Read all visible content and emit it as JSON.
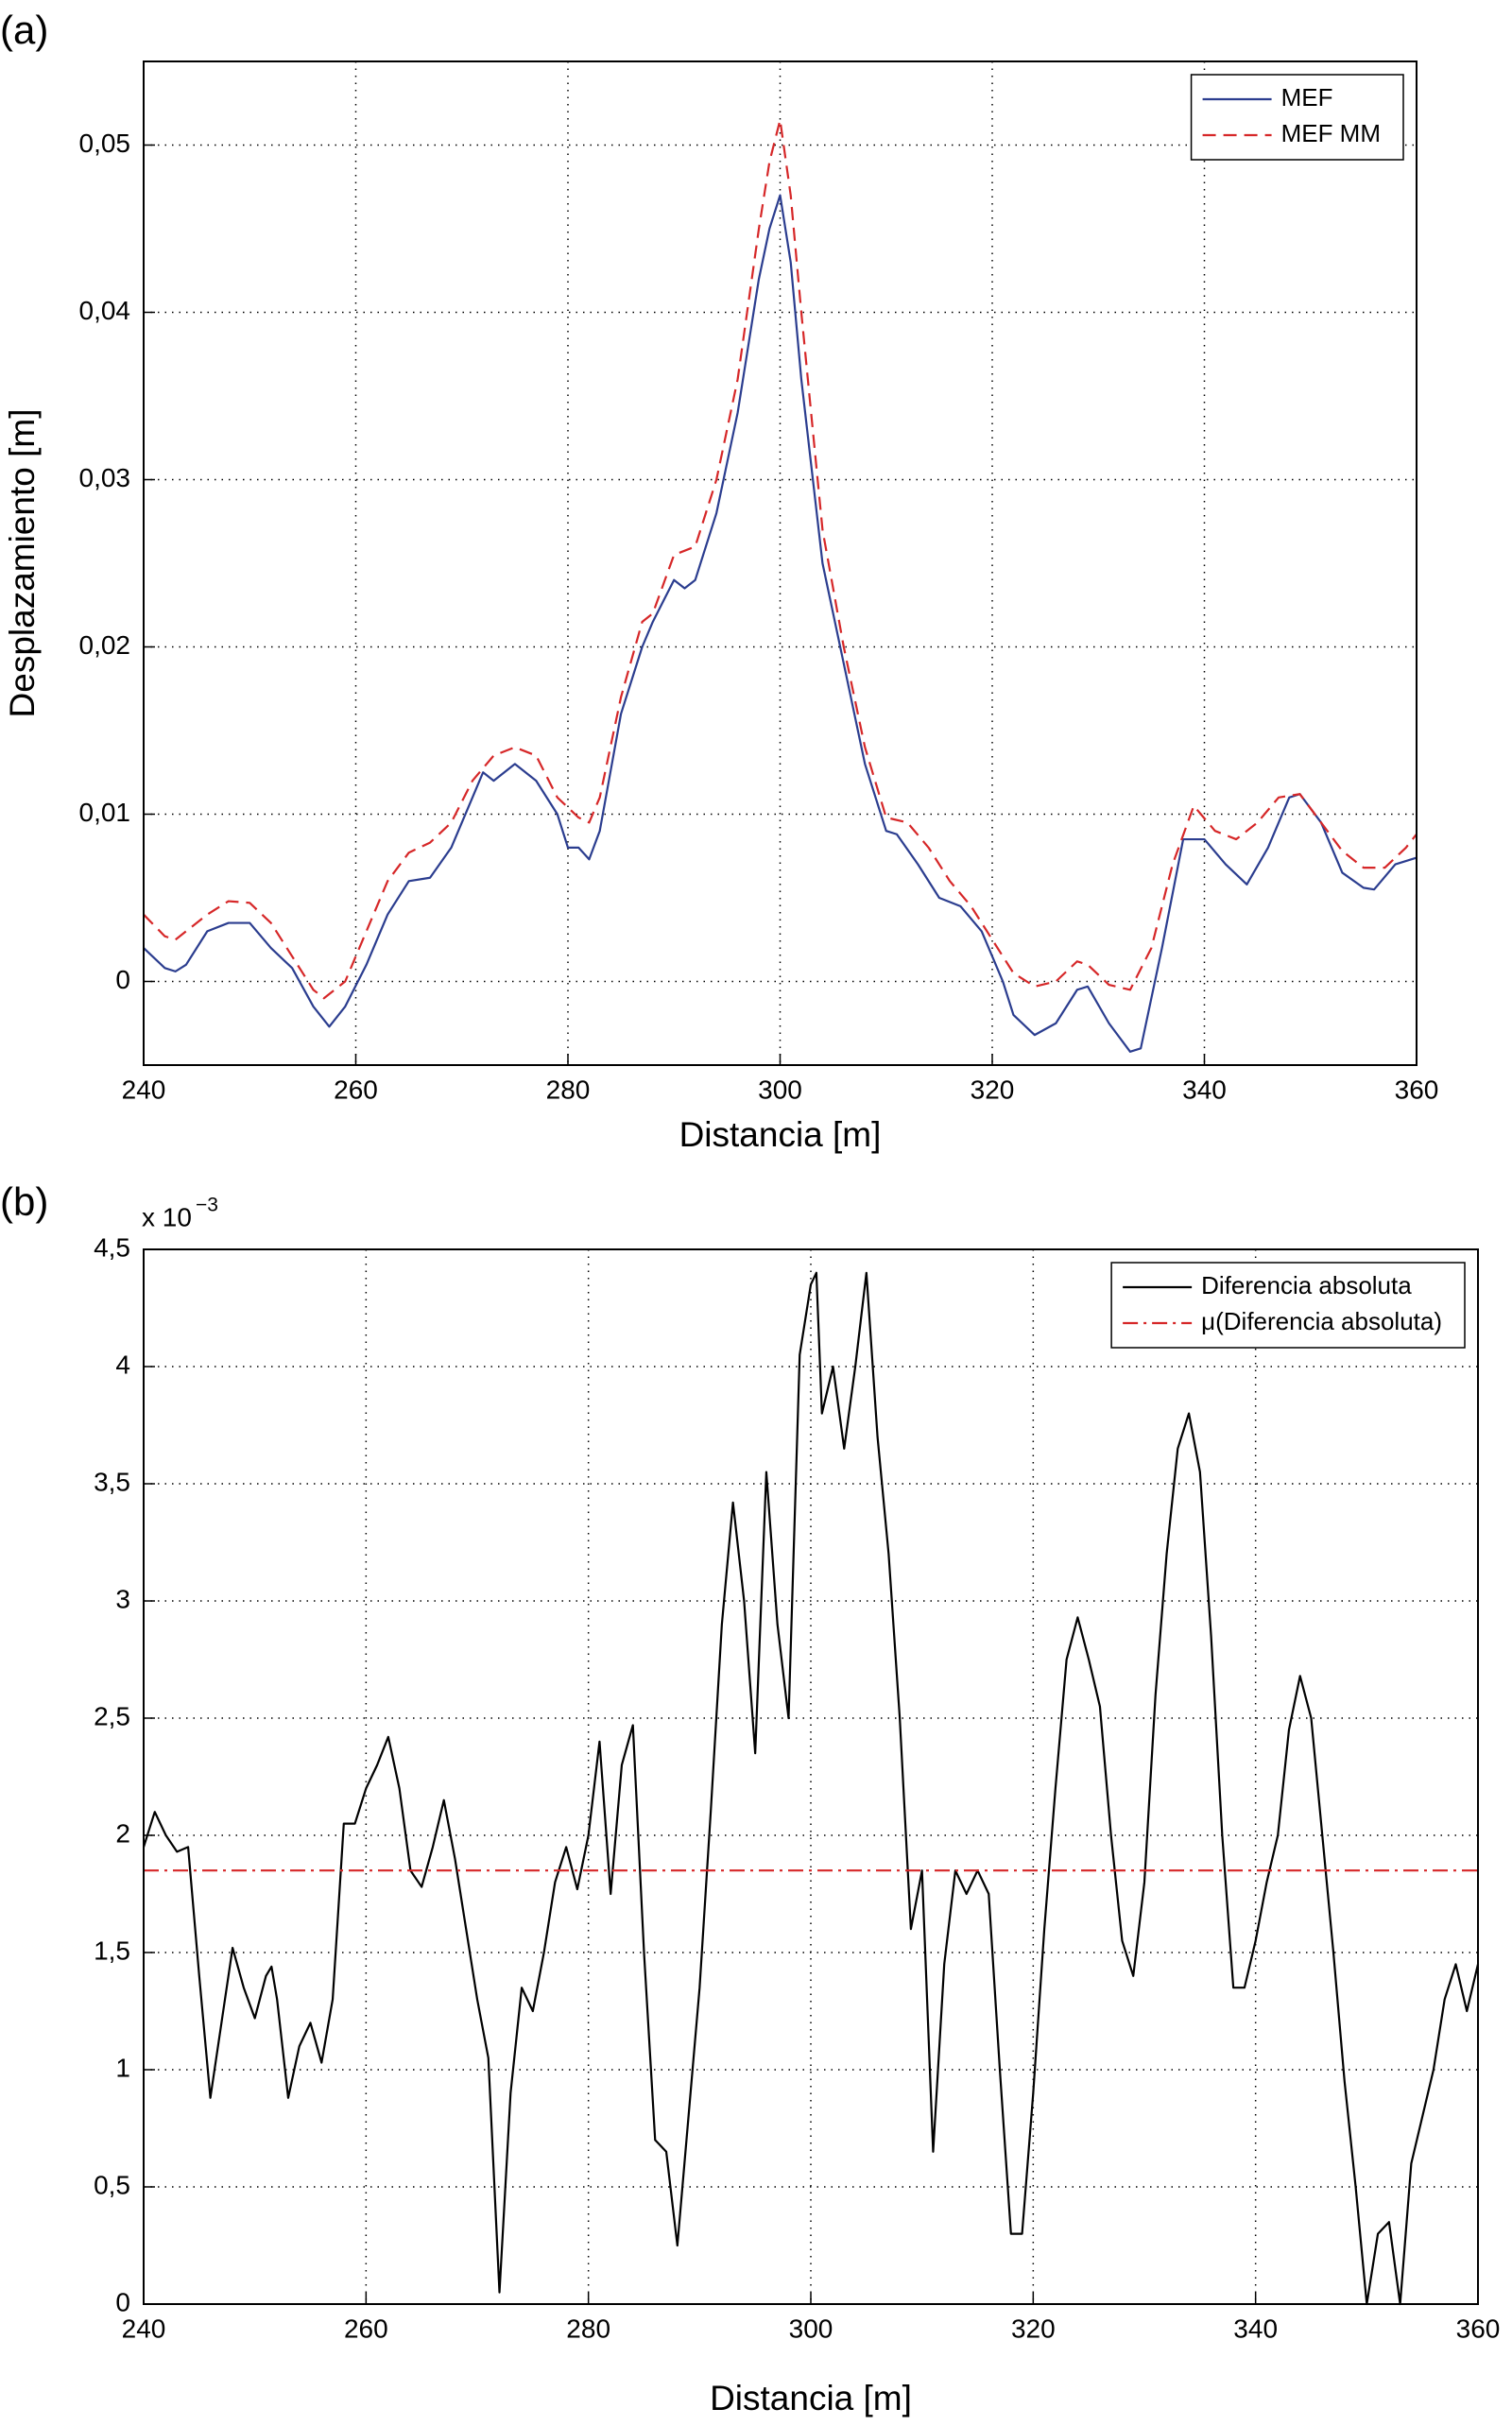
{
  "chart_data": [
    {
      "type": "line",
      "panel_label": "(a)",
      "xlabel": "Distancia [m]",
      "ylabel": "Desplazamiento [m]",
      "xlim": [
        240,
        360
      ],
      "xticks": [
        240,
        260,
        280,
        300,
        320,
        340,
        360
      ],
      "ylim": [
        -0.005,
        0.055
      ],
      "yticks": [
        0,
        {
          "value": 0.01,
          "label": "0,01"
        },
        {
          "value": 0.02,
          "label": "0,02"
        },
        {
          "value": 0.03,
          "label": "0,03"
        },
        {
          "value": 0.04,
          "label": "0,04"
        },
        {
          "value": 0.05,
          "label": "0,05"
        }
      ],
      "grid": true,
      "legend": "upper right",
      "series": [
        {
          "name": "MEF",
          "color": "#2b3d8f",
          "style": "solid",
          "x": [
            240,
            242,
            243,
            244,
            246,
            248,
            250,
            252,
            254,
            256,
            257.5,
            259,
            261,
            263,
            265,
            267,
            269,
            271,
            272,
            273,
            275,
            277,
            279,
            280,
            281,
            282,
            283,
            285,
            287,
            288,
            290,
            291,
            292,
            294,
            296,
            298,
            299,
            300,
            301,
            302,
            304,
            306,
            308,
            310,
            311,
            313,
            315,
            317,
            319,
            321,
            322,
            324,
            326,
            328,
            329,
            331,
            333,
            334,
            336,
            338,
            340,
            342,
            344,
            346,
            348,
            349,
            351,
            353,
            355,
            356,
            358,
            360
          ],
          "values": [
            0.002,
            0.0008,
            0.0006,
            0.001,
            0.003,
            0.0035,
            0.0035,
            0.002,
            0.0008,
            -0.0015,
            -0.0027,
            -0.0015,
            0.001,
            0.004,
            0.006,
            0.0062,
            0.008,
            0.011,
            0.0125,
            0.012,
            0.013,
            0.012,
            0.01,
            0.008,
            0.008,
            0.0073,
            0.009,
            0.016,
            0.02,
            0.0215,
            0.024,
            0.0235,
            0.024,
            0.028,
            0.034,
            0.042,
            0.045,
            0.047,
            0.043,
            0.036,
            0.025,
            0.019,
            0.013,
            0.009,
            0.0088,
            0.007,
            0.005,
            0.0045,
            0.003,
            0.0,
            -0.002,
            -0.0032,
            -0.0025,
            -0.0005,
            -0.0003,
            -0.0025,
            -0.0042,
            -0.004,
            0.002,
            0.0085,
            0.0085,
            0.007,
            0.0058,
            0.008,
            0.011,
            0.0112,
            0.0095,
            0.0065,
            0.0056,
            0.0055,
            0.007,
            0.0074
          ]
        },
        {
          "name": "MEF MM",
          "color": "#d62728",
          "style": "dashed",
          "x": [
            240,
            242,
            243,
            244,
            246,
            248,
            250,
            252,
            254,
            256,
            257,
            259,
            261,
            263,
            265,
            267,
            269,
            271,
            273,
            275,
            277,
            279,
            281,
            282,
            283,
            285,
            287,
            288,
            290,
            292,
            294,
            296,
            298,
            299,
            300,
            301,
            302,
            304,
            306,
            308,
            310,
            312,
            314,
            316,
            318,
            320,
            322,
            324,
            326,
            328,
            329,
            331,
            333,
            335,
            337,
            339,
            341,
            343,
            345,
            347,
            349,
            351,
            353,
            355,
            357,
            359,
            360
          ],
          "values": [
            0.004,
            0.0027,
            0.0025,
            0.003,
            0.004,
            0.0048,
            0.0047,
            0.0035,
            0.0015,
            -0.0005,
            -0.001,
            0.0,
            0.003,
            0.006,
            0.0077,
            0.0083,
            0.0095,
            0.012,
            0.0135,
            0.014,
            0.0135,
            0.011,
            0.0098,
            0.0095,
            0.011,
            0.017,
            0.0215,
            0.022,
            0.0255,
            0.026,
            0.03,
            0.036,
            0.045,
            0.049,
            0.0515,
            0.047,
            0.04,
            0.027,
            0.02,
            0.014,
            0.0098,
            0.0095,
            0.008,
            0.006,
            0.0045,
            0.0025,
            0.0005,
            -0.0003,
            0.0,
            0.0012,
            0.001,
            -0.0002,
            -0.0005,
            0.002,
            0.007,
            0.0105,
            0.009,
            0.0085,
            0.0095,
            0.011,
            0.0112,
            0.0095,
            0.0078,
            0.0068,
            0.0068,
            0.008,
            0.0088
          ]
        }
      ]
    },
    {
      "type": "line",
      "panel_label": "(b)",
      "xlabel": "Distancia [m]",
      "y_multiplier": "x 10",
      "y_exponent": "−3",
      "xlim": [
        240,
        360
      ],
      "xticks": [
        240,
        260,
        280,
        300,
        320,
        340,
        360
      ],
      "ylim": [
        0,
        4.5
      ],
      "yticks": [
        0,
        {
          "value": 0.5,
          "label": "0,5"
        },
        1,
        {
          "value": 1.5,
          "label": "1,5"
        },
        2,
        {
          "value": 2.5,
          "label": "2,5"
        },
        3,
        {
          "value": 3.5,
          "label": "3,5"
        },
        4,
        {
          "value": 4.5,
          "label": "4,5"
        }
      ],
      "grid": true,
      "legend": "upper right",
      "series": [
        {
          "name": "Diferencia absoluta",
          "color": "#000000",
          "style": "solid",
          "x": [
            240,
            241,
            242,
            243,
            244,
            245,
            246,
            247,
            248,
            249,
            250,
            251,
            251.5,
            252,
            253,
            254,
            255,
            256,
            257,
            258,
            259,
            260,
            261,
            262,
            263,
            264,
            265,
            266,
            267,
            268,
            269,
            270,
            271,
            272,
            273,
            274,
            275,
            276,
            277,
            278,
            279,
            280,
            281,
            282,
            283,
            284,
            285,
            286,
            287,
            288,
            289,
            290,
            291,
            292,
            293,
            294,
            295,
            296,
            297,
            298,
            299,
            300,
            300.5,
            301,
            302,
            303,
            304,
            305,
            306,
            307,
            308,
            309,
            310,
            311,
            312,
            313,
            314,
            315,
            316,
            317,
            318,
            319,
            320,
            321,
            322,
            323,
            324,
            325,
            326,
            327,
            328,
            329,
            330,
            331,
            332,
            333,
            334,
            335,
            336,
            337,
            338,
            339,
            340,
            341,
            342,
            343,
            344,
            345,
            346,
            347,
            348,
            349,
            350,
            351,
            352,
            353,
            354,
            355,
            356,
            357,
            358,
            359,
            360
          ],
          "values": [
            1.95,
            2.1,
            2.0,
            1.93,
            1.95,
            1.4,
            0.88,
            1.2,
            1.52,
            1.35,
            1.22,
            1.4,
            1.44,
            1.3,
            0.88,
            1.1,
            1.2,
            1.03,
            1.3,
            2.05,
            2.05,
            2.2,
            2.3,
            2.42,
            2.2,
            1.85,
            1.78,
            1.95,
            2.15,
            1.9,
            1.6,
            1.3,
            1.05,
            0.05,
            0.9,
            1.35,
            1.25,
            1.5,
            1.8,
            1.95,
            1.77,
            2.0,
            2.4,
            1.75,
            2.3,
            2.47,
            1.5,
            0.7,
            0.65,
            0.25,
            0.8,
            1.35,
            2.1,
            2.9,
            3.42,
            3.0,
            2.35,
            3.55,
            2.9,
            2.5,
            4.05,
            4.35,
            4.4,
            3.8,
            4.0,
            3.65,
            4.0,
            4.4,
            3.7,
            3.2,
            2.5,
            1.6,
            1.85,
            0.65,
            1.45,
            1.85,
            1.75,
            1.85,
            1.75,
            1.0,
            0.3,
            0.3,
            0.9,
            1.6,
            2.2,
            2.75,
            2.93,
            2.75,
            2.55,
            2.0,
            1.55,
            1.4,
            1.8,
            2.6,
            3.2,
            3.65,
            3.8,
            3.55,
            2.85,
            2.0,
            1.35,
            1.35,
            1.55,
            1.8,
            2.0,
            2.45,
            2.68,
            2.5,
            2.0,
            1.5,
            0.95,
            0.5,
            0.0,
            0.3,
            0.35,
            0.0,
            0.6,
            0.8,
            1.0,
            1.3,
            1.45,
            1.25,
            1.45
          ]
        },
        {
          "name": "μ(Diferencia absoluta)",
          "color": "#d62728",
          "style": "dashdot",
          "x": [
            240,
            360
          ],
          "values": [
            1.85,
            1.85
          ]
        }
      ]
    }
  ]
}
